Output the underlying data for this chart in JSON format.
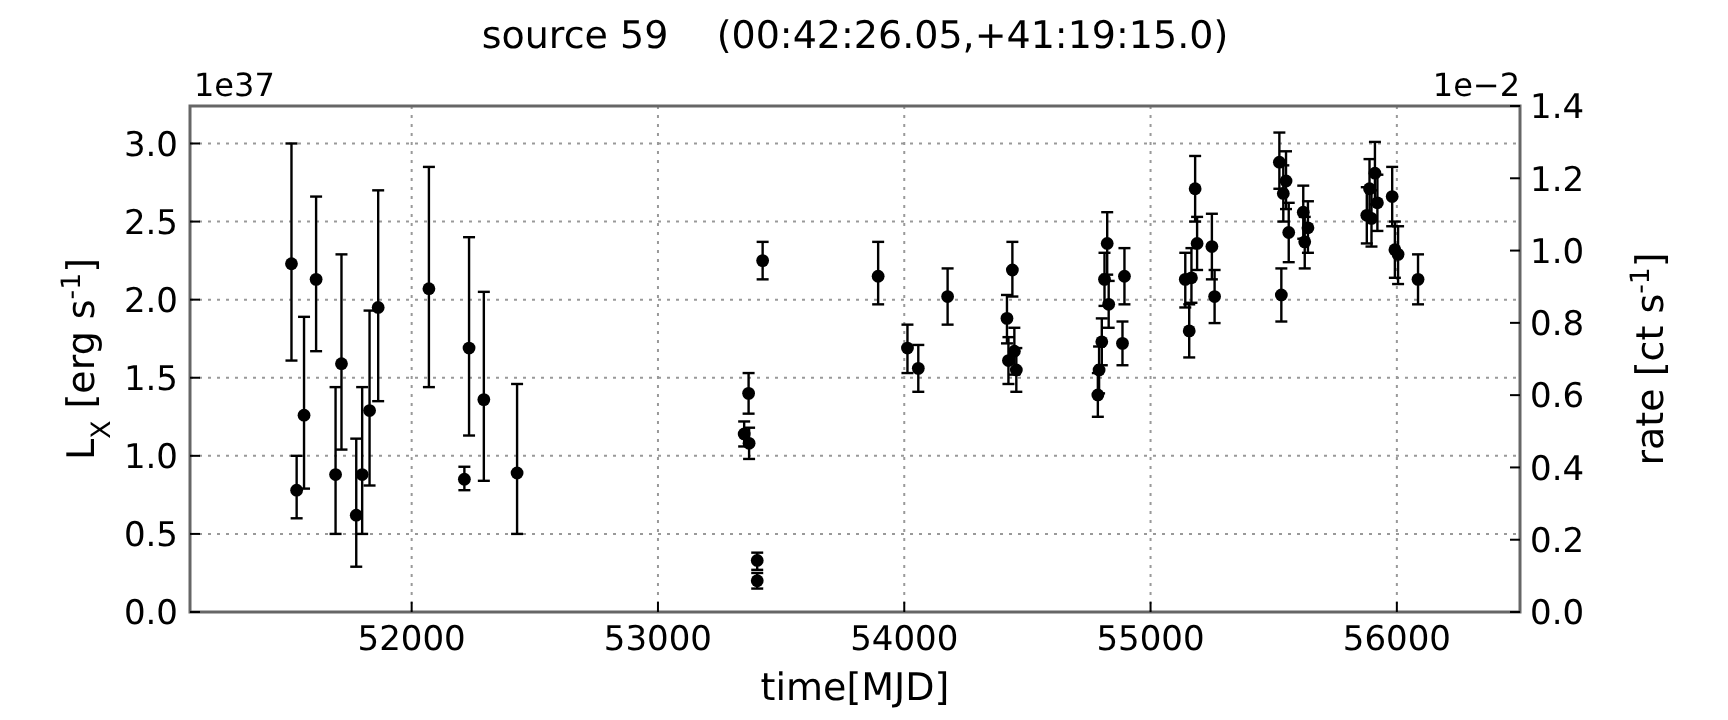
{
  "chart_data": {
    "type": "scatter",
    "title": "source 59    (00:42:26.05,+41:19:15.0)",
    "xlabel": "time[MJD]",
    "ylabel": "L$_{X}$ [erg s$^{-1}$]",
    "y2label": "rate [ct s$^{-1}$]",
    "annotations": [
      "1e37",
      "1e−2"
    ],
    "xlim": [
      51100,
      56500
    ],
    "xticks": [
      52000,
      53000,
      54000,
      55000,
      56000
    ],
    "ylim": [
      0,
      3.24
    ],
    "yticks": [
      {
        "value": 0,
        "label": "0.0"
      },
      {
        "value": 0.5,
        "label": "0.5"
      },
      {
        "value": 1,
        "label": "1.0"
      },
      {
        "value": 1.5,
        "label": "1.5"
      },
      {
        "value": 2,
        "label": "2.0"
      },
      {
        "value": 2.5,
        "label": "2.5"
      },
      {
        "value": 3,
        "label": "3.0"
      }
    ],
    "y2lim": [
      0,
      1.4
    ],
    "y2ticks": [
      {
        "value": 0,
        "label": "0.0"
      },
      {
        "value": 0.2,
        "label": "0.2"
      },
      {
        "value": 0.4,
        "label": "0.4"
      },
      {
        "value": 0.6,
        "label": "0.6"
      },
      {
        "value": 0.8,
        "label": "0.8"
      },
      {
        "value": 1,
        "label": "1.0"
      },
      {
        "value": 1.2,
        "label": "1.2"
      },
      {
        "value": 1.4,
        "label": "1.4"
      }
    ],
    "grid": true,
    "marker": "circle",
    "series": [
      {
        "color": "#000000",
        "x": [
          51512,
          51533,
          51563,
          51612,
          51691,
          51715,
          51775,
          51799,
          51829,
          51864,
          52070,
          52214,
          52233,
          52293,
          52428,
          53350,
          53368,
          53370,
          53403,
          53403,
          53425,
          53894,
          54013,
          54057,
          54176,
          54417,
          54423,
          54439,
          54447,
          54455,
          54786,
          54791,
          54802,
          54813,
          54824,
          54830,
          54886,
          54894,
          55141,
          55157,
          55166,
          55181,
          55189,
          55249,
          55260,
          55523,
          55531,
          55539,
          55550,
          55561,
          55620,
          55626,
          55639,
          55878,
          55889,
          55897,
          55911,
          55921,
          55981,
          55992,
          56005,
          56086
        ],
        "values": [
          2.23,
          0.78,
          1.26,
          2.13,
          0.88,
          1.59,
          0.62,
          0.88,
          1.29,
          1.95,
          2.07,
          0.85,
          1.69,
          1.36,
          0.89,
          1.14,
          1.4,
          1.08,
          0.33,
          0.2,
          2.25,
          2.15,
          1.69,
          1.56,
          2.02,
          1.88,
          1.61,
          2.19,
          1.67,
          1.55,
          1.39,
          1.55,
          1.73,
          2.13,
          2.36,
          1.97,
          1.72,
          2.15,
          2.13,
          1.8,
          2.14,
          2.71,
          2.36,
          2.34,
          2.02,
          2.88,
          2.03,
          2.68,
          2.76,
          2.43,
          2.56,
          2.37,
          2.46,
          2.54,
          2.71,
          2.52,
          2.81,
          2.62,
          2.66,
          2.32,
          2.29,
          2.13
        ],
        "errors": [
          [
            1.61,
            3.0
          ],
          [
            0.6,
            1.0
          ],
          [
            0.79,
            1.89
          ],
          [
            1.67,
            2.66
          ],
          [
            0.5,
            1.44
          ],
          [
            1.04,
            2.29
          ],
          [
            0.29,
            1.11
          ],
          [
            0.5,
            1.44
          ],
          [
            0.81,
            1.93
          ],
          [
            1.35,
            2.7
          ],
          [
            1.44,
            2.85
          ],
          [
            0.78,
            0.93
          ],
          [
            1.13,
            2.4
          ],
          [
            0.84,
            2.05
          ],
          [
            0.5,
            1.46
          ],
          [
            1.06,
            1.22
          ],
          [
            1.27,
            1.53
          ],
          [
            0.98,
            1.18
          ],
          [
            0.27,
            0.38
          ],
          [
            0.15,
            0.25
          ],
          [
            2.13,
            2.37
          ],
          [
            1.97,
            2.37
          ],
          [
            1.53,
            1.84
          ],
          [
            1.41,
            1.71
          ],
          [
            1.84,
            2.2
          ],
          [
            1.72,
            2.03
          ],
          [
            1.46,
            1.76
          ],
          [
            2.02,
            2.37
          ],
          [
            1.52,
            1.82
          ],
          [
            1.41,
            1.69
          ],
          [
            1.25,
            1.53
          ],
          [
            1.4,
            1.7
          ],
          [
            1.58,
            1.88
          ],
          [
            1.96,
            2.3
          ],
          [
            2.16,
            2.56
          ],
          [
            1.82,
            2.12
          ],
          [
            1.58,
            1.86
          ],
          [
            1.97,
            2.33
          ],
          [
            1.95,
            2.3
          ],
          [
            1.63,
            1.97
          ],
          [
            1.98,
            2.33
          ],
          [
            2.5,
            2.92
          ],
          [
            2.19,
            2.53
          ],
          [
            2.13,
            2.55
          ],
          [
            1.85,
            2.19
          ],
          [
            2.71,
            3.07
          ],
          [
            1.86,
            2.2
          ],
          [
            2.5,
            2.86
          ],
          [
            2.58,
            2.95
          ],
          [
            2.24,
            2.62
          ],
          [
            2.39,
            2.73
          ],
          [
            2.2,
            2.53
          ],
          [
            2.3,
            2.63
          ],
          [
            2.36,
            2.72
          ],
          [
            2.52,
            2.9
          ],
          [
            2.34,
            2.7
          ],
          [
            2.61,
            3.01
          ],
          [
            2.44,
            2.8
          ],
          [
            2.47,
            2.85
          ],
          [
            2.14,
            2.5
          ],
          [
            2.1,
            2.47
          ],
          [
            1.97,
            2.29
          ]
        ]
      }
    ]
  }
}
